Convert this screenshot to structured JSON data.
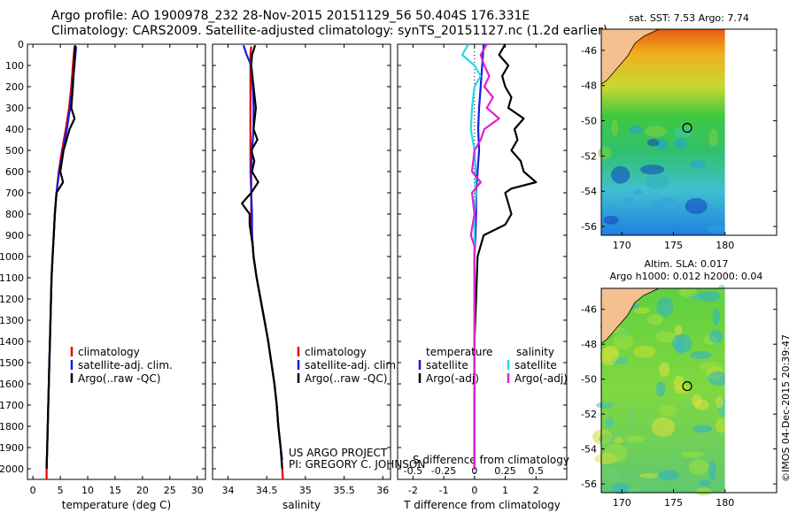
{
  "header": {
    "line1": "Argo profile: AO 1900978_232 28-Nov-2015 20151129_56 50.404S 176.331E",
    "line2": "Climatology: CARS2009. Satellite-adjusted climatology: synTS_20151127.nc (1.2d earlier)"
  },
  "colors": {
    "climatology": "#e00000",
    "satellite": "#1a1ae0",
    "argo": "#000000",
    "salinity_satellite": "#22d8e8",
    "salinity_argo": "#e020d0"
  },
  "depth_ticks": [
    "0",
    "100",
    "200",
    "300",
    "400",
    "500",
    "600",
    "700",
    "800",
    "900",
    "1000",
    "1100",
    "1200",
    "1300",
    "1400",
    "1500",
    "1600",
    "1700",
    "1800",
    "1900",
    "2000"
  ],
  "chart_data": [
    {
      "type": "line",
      "xlabel": "temperature (deg C)",
      "xlim": [
        -1,
        31.5
      ],
      "ylim": [
        2050,
        0
      ],
      "x_ticks": [
        "0",
        "5",
        "10",
        "15",
        "20",
        "25",
        "30"
      ],
      "legend": [
        "climatology",
        "satellite-adj. clim.",
        "Argo(..raw -QC)"
      ],
      "series": [
        {
          "name": "climatology",
          "depth": [
            10,
            100,
            200,
            300,
            400,
            500,
            600,
            700,
            800,
            900,
            1000,
            1100,
            1200,
            1300,
            1400,
            1500,
            1600,
            1700,
            1800,
            1900,
            2000,
            2050
          ],
          "values": [
            7.6,
            7.3,
            7.0,
            6.6,
            6.0,
            5.3,
            4.7,
            4.3,
            4.0,
            3.8,
            3.6,
            3.4,
            3.3,
            3.2,
            3.1,
            3.0,
            2.9,
            2.8,
            2.7,
            2.6,
            2.5,
            2.5
          ]
        },
        {
          "name": "satellite-adj. clim.",
          "depth": [
            10,
            100,
            200,
            300,
            400,
            500,
            600,
            700,
            800,
            900,
            1000,
            1100,
            1200,
            1300,
            1400,
            1500,
            1600,
            1700,
            1800,
            1900,
            2000
          ],
          "values": [
            7.9,
            7.6,
            7.2,
            6.8,
            6.2,
            5.5,
            4.8,
            4.3,
            4.0,
            3.8,
            3.6,
            3.4,
            3.3,
            3.2,
            3.1,
            3.0,
            2.9,
            2.8,
            2.7,
            2.6,
            2.5
          ]
        },
        {
          "name": "Argo(..raw -QC)",
          "depth": [
            5,
            100,
            200,
            300,
            350,
            400,
            500,
            600,
            650,
            700,
            800,
            900,
            1000,
            1100,
            1200,
            1300,
            1400,
            1500,
            1600,
            1700,
            1800,
            1900,
            2000
          ],
          "values": [
            7.7,
            7.5,
            7.3,
            7.0,
            7.6,
            6.7,
            5.6,
            5.0,
            5.5,
            4.3,
            4.0,
            3.8,
            3.6,
            3.4,
            3.3,
            3.2,
            3.1,
            3.0,
            2.9,
            2.8,
            2.7,
            2.6,
            2.5
          ]
        }
      ]
    },
    {
      "type": "line",
      "xlabel": "salinity",
      "xlim": [
        33.8,
        36.1
      ],
      "ylim": [
        2050,
        0
      ],
      "x_ticks": [
        "34",
        "34.5",
        "35",
        "35.5",
        "36"
      ],
      "legend": [
        "climatology",
        "satellite-adj. clim.",
        "Argo(..raw -QC)"
      ],
      "annotations": [
        "US ARGO PROJECT",
        "PI: GREGORY C. JOHNSON"
      ],
      "series": [
        {
          "name": "climatology",
          "depth": [
            10,
            50,
            100,
            200,
            300,
            400,
            500,
            600,
            700,
            800,
            900,
            1000,
            1100,
            1200,
            1300,
            1400,
            1500,
            1600,
            1700,
            1800,
            1900,
            2000,
            2050
          ],
          "values": [
            34.3,
            34.29,
            34.29,
            34.29,
            34.29,
            34.29,
            34.29,
            34.29,
            34.3,
            34.3,
            34.31,
            34.33,
            34.37,
            34.42,
            34.47,
            34.52,
            34.56,
            34.6,
            34.63,
            34.65,
            34.68,
            34.7,
            34.71
          ]
        },
        {
          "name": "satellite-adj. clim.",
          "depth": [
            5,
            50,
            100,
            200,
            300,
            400,
            500,
            600,
            700,
            800,
            900,
            1000,
            1100,
            1200,
            1300,
            1400,
            1500,
            1600,
            1700,
            1800,
            1900,
            1960
          ],
          "values": [
            34.2,
            34.24,
            34.3,
            34.32,
            34.33,
            34.33,
            34.31,
            34.3,
            34.3,
            34.31,
            34.31,
            34.33,
            34.37,
            34.42,
            34.47,
            34.52,
            34.56,
            34.6,
            34.63,
            34.65,
            34.68,
            34.7
          ]
        },
        {
          "name": "Argo(..raw -QC)",
          "depth": [
            5,
            50,
            100,
            200,
            300,
            400,
            450,
            500,
            550,
            600,
            650,
            700,
            750,
            800,
            850,
            900,
            950,
            1000,
            1100,
            1200,
            1300,
            1400,
            1500,
            1600,
            1700,
            1800,
            1900,
            2000
          ],
          "values": [
            34.35,
            34.31,
            34.3,
            34.33,
            34.36,
            34.33,
            34.38,
            34.3,
            34.34,
            34.31,
            34.39,
            34.3,
            34.18,
            34.28,
            34.28,
            34.3,
            34.32,
            34.33,
            34.37,
            34.42,
            34.47,
            34.52,
            34.56,
            34.6,
            34.63,
            34.65,
            34.68,
            34.7
          ]
        }
      ]
    },
    {
      "type": "line",
      "xlabel": "T difference from climatology",
      "top_label": "S difference from climatology",
      "xlim": [
        -2.5,
        3
      ],
      "ylim": [
        2050,
        0
      ],
      "x_ticks": [
        "-2",
        "-1",
        "0",
        "1",
        "2"
      ],
      "top_ticks": [
        "-0.5",
        "-0.25",
        "0",
        "0.25",
        "0.5"
      ],
      "legend_headers": [
        "temperature",
        "salinity"
      ],
      "legend": [
        "satellite",
        "Argo(-adj)",
        "satellite",
        "Argo(-adj)"
      ],
      "series": [
        {
          "name": "temperature satellite",
          "depth": [
            0,
            100,
            200,
            300,
            400,
            500,
            600,
            700,
            800,
            900,
            1000,
            1200,
            1400,
            1600,
            1800,
            2000
          ],
          "values": [
            0.3,
            0.25,
            0.2,
            0.15,
            0.12,
            0.15,
            0.1,
            0.05,
            0.05,
            0.03,
            0.0,
            0.0,
            0.0,
            0.0,
            0.0,
            0.0
          ]
        },
        {
          "name": "temperature Argo(-adj)",
          "depth": [
            0,
            50,
            100,
            150,
            200,
            250,
            300,
            350,
            400,
            450,
            500,
            550,
            600,
            650,
            680,
            700,
            750,
            800,
            850,
            900,
            1000,
            1200,
            1400,
            1600,
            1800,
            2000
          ],
          "values": [
            1.0,
            0.8,
            1.1,
            0.9,
            1.0,
            1.2,
            1.1,
            1.6,
            1.3,
            1.4,
            1.2,
            1.5,
            1.6,
            2.0,
            1.2,
            1.0,
            1.1,
            1.2,
            1.0,
            0.3,
            0.1,
            0.05,
            0.0,
            0.0,
            0.0,
            0.0
          ]
        },
        {
          "name": "salinity satellite",
          "depth": [
            0,
            50,
            100,
            150,
            200,
            300,
            400,
            500,
            600,
            700,
            800,
            1000,
            1200,
            1400,
            1600,
            1800,
            2000
          ],
          "values": [
            -0.05,
            -0.1,
            0.0,
            0.05,
            0.0,
            -0.02,
            -0.03,
            0.0,
            0.01,
            0.01,
            0.0,
            0.0,
            0.0,
            0.0,
            0.0,
            0.0,
            0.0
          ]
        },
        {
          "name": "salinity Argo(-adj)",
          "depth": [
            0,
            50,
            100,
            150,
            200,
            250,
            300,
            350,
            400,
            450,
            500,
            600,
            650,
            700,
            800,
            900,
            950,
            1000,
            1200,
            1400,
            1600,
            1700,
            1800,
            2000
          ],
          "values": [
            0.1,
            0.05,
            0.08,
            0.12,
            0.08,
            0.15,
            0.1,
            0.2,
            0.08,
            0.05,
            0.0,
            -0.02,
            0.05,
            -0.02,
            0.0,
            -0.03,
            0.0,
            0.0,
            0.0,
            0.0,
            0.0,
            0.0,
            0.0,
            0.0
          ]
        }
      ]
    },
    {
      "type": "heatmap",
      "title": "sat. SST: 7.53 Argo: 7.74",
      "x_ticks": [
        "170",
        "175",
        "180"
      ],
      "y_ticks": [
        "-46",
        "-48",
        "-50",
        "-52",
        "-54",
        "-56"
      ],
      "xlim": [
        168,
        185
      ],
      "ylim": [
        -56.5,
        -44.8
      ],
      "float_position": [
        176.33,
        -50.4
      ]
    },
    {
      "type": "heatmap",
      "title": "Altim. SLA: 0.017",
      "subtitle": "Argo h1000: 0.012 h2000: 0.04",
      "x_ticks": [
        "170",
        "175",
        "180"
      ],
      "y_ticks": [
        "-46",
        "-48",
        "-50",
        "-52",
        "-54",
        "-56"
      ],
      "xlim": [
        168,
        185
      ],
      "ylim": [
        -56.5,
        -44.8
      ],
      "float_position": [
        176.33,
        -50.4
      ]
    }
  ],
  "footer": {
    "timestamp": "©IMOS 04-Dec-2015 20:39:47"
  }
}
